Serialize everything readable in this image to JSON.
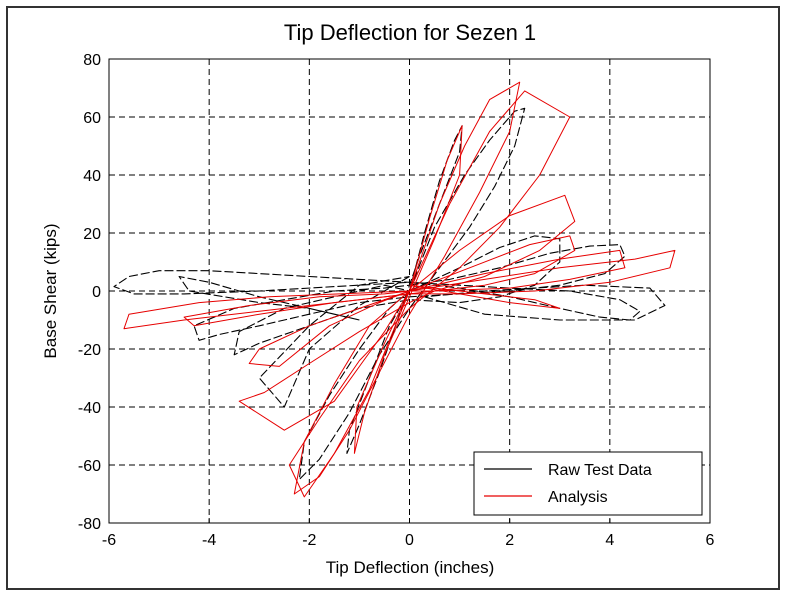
{
  "chart_data": {
    "type": "line",
    "title": "Tip Deflection for Sezen 1",
    "xlabel": "Tip Deflection (inches)",
    "ylabel": "Base Shear (kips)",
    "xlim": [
      -6,
      6
    ],
    "ylim": [
      -80,
      80
    ],
    "xticks": [
      "-6",
      "-4",
      "-2",
      "0",
      "2",
      "4",
      "6"
    ],
    "yticks": [
      "80",
      "60",
      "40",
      "20",
      "0",
      "-20",
      "-40",
      "-60",
      "-80"
    ],
    "grid": true,
    "grid_style": "dashed",
    "legend_position": "bottom-right",
    "series": [
      {
        "name": "Raw Test Data",
        "color": "#000000",
        "style": "dashed",
        "loops": [
          [
            [
              0,
              0
            ],
            [
              0.3,
              20
            ],
            [
              0.6,
              38
            ],
            [
              0.9,
              52
            ],
            [
              1.05,
              57
            ],
            [
              1.0,
              48
            ],
            [
              0.6,
              30
            ],
            [
              0.2,
              12
            ],
            [
              -0.2,
              -8
            ],
            [
              -0.6,
              -28
            ],
            [
              -1.0,
              -46
            ],
            [
              -1.25,
              -56
            ],
            [
              -1.2,
              -48
            ],
            [
              -0.8,
              -30
            ],
            [
              -0.4,
              -12
            ],
            [
              0,
              0
            ]
          ],
          [
            [
              0,
              0
            ],
            [
              0.5,
              22
            ],
            [
              1.1,
              40
            ],
            [
              1.6,
              52
            ],
            [
              2.1,
              62
            ],
            [
              2.3,
              63
            ],
            [
              2.1,
              50
            ],
            [
              1.7,
              36
            ],
            [
              1.2,
              22
            ],
            [
              0.6,
              8
            ],
            [
              0,
              -6
            ],
            [
              -0.6,
              -22
            ],
            [
              -1.2,
              -42
            ],
            [
              -1.8,
              -58
            ],
            [
              -2.2,
              -65
            ],
            [
              -2.1,
              -52
            ],
            [
              -1.6,
              -36
            ],
            [
              -1.0,
              -20
            ],
            [
              -0.4,
              -6
            ],
            [
              0,
              0
            ]
          ],
          [
            [
              0,
              0
            ],
            [
              1.0,
              8
            ],
            [
              1.8,
              15
            ],
            [
              2.5,
              19
            ],
            [
              3.0,
              18
            ],
            [
              3.0,
              10
            ],
            [
              2.5,
              2
            ],
            [
              1.8,
              -2
            ],
            [
              1.0,
              -4
            ],
            [
              0,
              -3
            ],
            [
              -1.0,
              -6
            ],
            [
              -2.0,
              -12
            ],
            [
              -3.0,
              -18
            ],
            [
              -3.5,
              -22
            ],
            [
              -3.4,
              -14
            ],
            [
              -2.5,
              -6
            ],
            [
              -1.5,
              -2
            ],
            [
              -0.5,
              2
            ],
            [
              0,
              0
            ]
          ],
          [
            [
              0,
              2
            ],
            [
              0.8,
              4
            ],
            [
              1.8,
              8
            ],
            [
              2.8,
              13
            ],
            [
              3.6,
              15.5
            ],
            [
              4.2,
              16
            ],
            [
              4.3,
              12
            ],
            [
              3.9,
              6
            ],
            [
              3.0,
              2
            ],
            [
              2.0,
              0
            ],
            [
              1.0,
              -1
            ],
            [
              0,
              -2
            ],
            [
              -1,
              -4
            ],
            [
              -2,
              -8
            ],
            [
              -3,
              -12
            ],
            [
              -3.8,
              -15
            ],
            [
              -4.2,
              -17
            ],
            [
              -4.3,
              -12
            ],
            [
              -3.5,
              -6
            ],
            [
              -2.5,
              -3
            ],
            [
              -1.5,
              0
            ],
            [
              -0.5,
              1
            ],
            [
              0,
              2
            ]
          ],
          [
            [
              0,
              3
            ],
            [
              1,
              1
            ],
            [
              2,
              -2
            ],
            [
              3,
              -6
            ],
            [
              3.8,
              -9
            ],
            [
              4.4,
              -10
            ],
            [
              4.6,
              -7
            ],
            [
              4.2,
              -3
            ],
            [
              3.2,
              0
            ],
            [
              2,
              1
            ],
            [
              1,
              2
            ],
            [
              0,
              3
            ],
            [
              -1,
              4
            ],
            [
              -2,
              5
            ],
            [
              -3,
              6
            ],
            [
              -4,
              7
            ],
            [
              -5,
              7
            ],
            [
              -5.6,
              5
            ],
            [
              -5.9,
              1.5
            ],
            [
              -5.5,
              -1
            ],
            [
              -4.5,
              -1
            ],
            [
              -3,
              0
            ],
            [
              -1.5,
              1.5
            ],
            [
              0,
              3
            ]
          ],
          [
            [
              0,
              5
            ],
            [
              -1,
              -5
            ],
            [
              -2,
              -20
            ],
            [
              -2.5,
              -40
            ],
            [
              -3,
              -30
            ],
            [
              -2,
              -12
            ],
            [
              -1,
              2
            ],
            [
              0,
              5
            ]
          ],
          [
            [
              -1,
              -10
            ],
            [
              -2,
              -6
            ],
            [
              -3,
              -2
            ],
            [
              -4,
              3
            ],
            [
              -4.6,
              5
            ],
            [
              -4.4,
              0
            ],
            [
              -3,
              -4
            ],
            [
              -2,
              -6
            ],
            [
              -1,
              -10
            ]
          ],
          [
            [
              0.3,
              -2
            ],
            [
              1.5,
              -8
            ],
            [
              3,
              -10
            ],
            [
              4.5,
              -10
            ],
            [
              5.1,
              -5
            ],
            [
              4.8,
              1
            ],
            [
              3.5,
              2
            ],
            [
              1.5,
              0
            ],
            [
              0.3,
              -2
            ]
          ]
        ]
      },
      {
        "name": "Analysis",
        "color": "#e60000",
        "style": "solid",
        "loops": [
          [
            [
              0,
              0
            ],
            [
              0.4,
              25
            ],
            [
              0.75,
              45
            ],
            [
              1.05,
              57
            ],
            [
              1.0,
              40
            ],
            [
              0.5,
              18
            ],
            [
              0,
              -2
            ],
            [
              -0.5,
              -22
            ],
            [
              -0.9,
              -42
            ],
            [
              -1.1,
              -56
            ],
            [
              -1.05,
              -40
            ],
            [
              -0.5,
              -18
            ],
            [
              0,
              0
            ]
          ],
          [
            [
              0,
              0
            ],
            [
              0.6,
              30
            ],
            [
              1.1,
              50
            ],
            [
              1.6,
              66
            ],
            [
              2.2,
              72
            ],
            [
              2.0,
              55
            ],
            [
              1.4,
              34
            ],
            [
              0.7,
              12
            ],
            [
              0,
              -8
            ],
            [
              -0.6,
              -28
            ],
            [
              -1.2,
              -48
            ],
            [
              -1.8,
              -64
            ],
            [
              -2.3,
              -70
            ],
            [
              -2.1,
              -52
            ],
            [
              -1.5,
              -32
            ],
            [
              -0.8,
              -12
            ],
            [
              0,
              0
            ]
          ],
          [
            [
              0,
              0
            ],
            [
              0.8,
              30
            ],
            [
              1.6,
              55
            ],
            [
              2.3,
              69
            ],
            [
              3.2,
              60
            ],
            [
              2.6,
              40
            ],
            [
              1.8,
              22
            ],
            [
              1,
              8
            ],
            [
              0,
              -6
            ],
            [
              -1,
              -24
            ],
            [
              -1.8,
              -44
            ],
            [
              -2.4,
              -60
            ],
            [
              -2.1,
              -71
            ],
            [
              -1.5,
              -56
            ],
            [
              -0.8,
              -34
            ],
            [
              0,
              0
            ]
          ],
          [
            [
              0,
              0
            ],
            [
              1,
              14
            ],
            [
              2,
              26
            ],
            [
              3.1,
              33
            ],
            [
              3.3,
              24
            ],
            [
              2.6,
              14
            ],
            [
              1.5,
              5
            ],
            [
              0.5,
              0
            ],
            [
              0,
              -4
            ],
            [
              -1,
              -14
            ],
            [
              -2,
              -25
            ],
            [
              -2.9,
              -35
            ],
            [
              -3.4,
              -38
            ],
            [
              -2.5,
              -48
            ],
            [
              -1.5,
              -38
            ],
            [
              -0.5,
              -14
            ],
            [
              0,
              0
            ]
          ],
          [
            [
              0,
              0
            ],
            [
              1.2,
              8
            ],
            [
              2.4,
              16
            ],
            [
              3.2,
              19
            ],
            [
              3.3,
              14
            ],
            [
              2.5,
              6
            ],
            [
              1.5,
              2
            ],
            [
              0.5,
              0
            ],
            [
              0,
              0
            ],
            [
              -1,
              -6
            ],
            [
              -2,
              -12
            ],
            [
              -3,
              -20
            ],
            [
              -3.2,
              -25
            ],
            [
              -2.6,
              -26
            ],
            [
              -1.6,
              -12
            ],
            [
              -0.6,
              -4
            ],
            [
              0,
              0
            ]
          ],
          [
            [
              0,
              0
            ],
            [
              1.5,
              6
            ],
            [
              3,
              11
            ],
            [
              4.2,
              14
            ],
            [
              4.3,
              8
            ],
            [
              3.2,
              4
            ],
            [
              2,
              1
            ],
            [
              0.5,
              0
            ],
            [
              0,
              -1
            ],
            [
              -1.5,
              -4
            ],
            [
              -3,
              -8
            ],
            [
              -4.3,
              -12
            ],
            [
              -4.5,
              -9
            ],
            [
              -3.2,
              -5
            ],
            [
              -1.8,
              -2
            ],
            [
              -0.5,
              -1
            ],
            [
              0,
              0
            ]
          ],
          [
            [
              0,
              0
            ],
            [
              1.5,
              4
            ],
            [
              3,
              8
            ],
            [
              4.5,
              11
            ],
            [
              5.3,
              14
            ],
            [
              5.2,
              8
            ],
            [
              4,
              3
            ],
            [
              2.5,
              0
            ],
            [
              1,
              -1
            ],
            [
              0,
              -1
            ],
            [
              -1.5,
              -4
            ],
            [
              -3,
              -7
            ],
            [
              -4.5,
              -10
            ],
            [
              -5.7,
              -13
            ],
            [
              -5.6,
              -8
            ],
            [
              -4.2,
              -4
            ],
            [
              -2.8,
              -2
            ],
            [
              -1.4,
              -1
            ],
            [
              0,
              0
            ]
          ],
          [
            [
              0,
              2
            ],
            [
              1,
              -1
            ],
            [
              2,
              -4
            ],
            [
              3,
              -6
            ],
            [
              2.5,
              -3
            ],
            [
              1.5,
              -1
            ],
            [
              0,
              2
            ]
          ]
        ]
      }
    ]
  }
}
